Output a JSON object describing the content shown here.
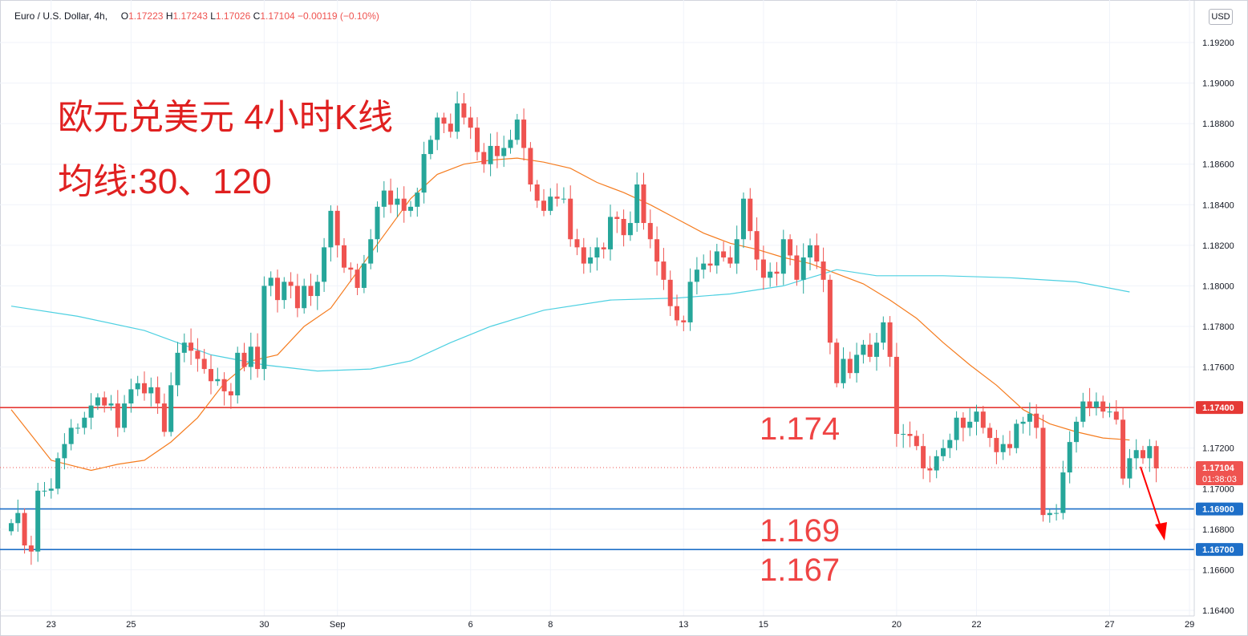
{
  "legend": {
    "symbol": "Euro / U.S. Dollar, 4h,",
    "open_label": "O",
    "open": "1.17223",
    "high_label": "H",
    "high": "1.17243",
    "low_label": "L",
    "low": "1.17026",
    "close_label": "C",
    "close": "1.17104",
    "change": "−0.00119 (−0.10%)"
  },
  "currency_button": "USD",
  "annotations": {
    "title": "欧元兑美元 4小时K线",
    "ma_label": "均线:30、120",
    "level_174": "1.174",
    "level_169": "1.169",
    "level_167": "1.167"
  },
  "colors": {
    "up": "#26a69a",
    "down": "#ef5350",
    "ma30": "#f57c1f",
    "ma120": "#4dd0e1",
    "resistance": "#e53935",
    "support": "#1e6fc8",
    "arrow": "#ff0000"
  },
  "chart_data": {
    "type": "candlestick",
    "title": "欧元兑美元 4小时K线",
    "ylim": [
      1.164,
      1.193
    ],
    "y_ticks": [
      "1.19200",
      "1.19000",
      "1.18800",
      "1.18600",
      "1.18400",
      "1.18200",
      "1.18000",
      "1.17800",
      "1.17600",
      "1.17400",
      "1.17200",
      "1.17000",
      "1.16800",
      "1.16600",
      "1.16400"
    ],
    "x_ticks": [
      {
        "label": "23",
        "bar": 6
      },
      {
        "label": "25",
        "bar": 18
      },
      {
        "label": "30",
        "bar": 38
      },
      {
        "label": "Sep",
        "bar": 49
      },
      {
        "label": "6",
        "bar": 69
      },
      {
        "label": "8",
        "bar": 81
      },
      {
        "label": "13",
        "bar": 101
      },
      {
        "label": "15",
        "bar": 113
      },
      {
        "label": "20",
        "bar": 133
      },
      {
        "label": "22",
        "bar": 145
      },
      {
        "label": "27",
        "bar": 165
      },
      {
        "label": "29",
        "bar": 177
      }
    ],
    "horizontal_lines": [
      {
        "name": "resistance",
        "value": 1.174,
        "label": "1.17400"
      },
      {
        "name": "support",
        "value": 1.169,
        "label": "1.16900"
      },
      {
        "name": "support",
        "value": 1.167,
        "label": "1.16700"
      }
    ],
    "last_price": {
      "value": 1.17104,
      "label": "1.17104",
      "countdown": "01:38:03"
    },
    "closes": [
      1.1683,
      1.1688,
      1.1672,
      1.1669,
      1.1699,
      1.1699,
      1.17,
      1.1715,
      1.1722,
      1.173,
      1.173,
      1.1735,
      1.1741,
      1.1745,
      1.1741,
      1.1742,
      1.173,
      1.1742,
      1.1749,
      1.1752,
      1.1747,
      1.175,
      1.1742,
      1.1728,
      1.1751,
      1.1767,
      1.1772,
      1.1768,
      1.1764,
      1.1759,
      1.1753,
      1.1754,
      1.1748,
      1.1746,
      1.1767,
      1.176,
      1.177,
      1.1759,
      1.18,
      1.1804,
      1.1793,
      1.1802,
      1.18,
      1.1789,
      1.18,
      1.1795,
      1.1802,
      1.1819,
      1.1837,
      1.182,
      1.1809,
      1.1808,
      1.1799,
      1.1811,
      1.1823,
      1.1839,
      1.1847,
      1.184,
      1.1843,
      1.1837,
      1.1839,
      1.1846,
      1.1865,
      1.1872,
      1.1883,
      1.188,
      1.1876,
      1.189,
      1.1883,
      1.1878,
      1.1866,
      1.186,
      1.1869,
      1.1864,
      1.1868,
      1.1872,
      1.1882,
      1.1868,
      1.185,
      1.1842,
      1.1837,
      1.1844,
      1.1843,
      1.1843,
      1.1823,
      1.1819,
      1.1811,
      1.1814,
      1.1819,
      1.1818,
      1.1834,
      1.1833,
      1.1825,
      1.1831,
      1.185,
      1.1831,
      1.1823,
      1.1812,
      1.1803,
      1.179,
      1.1783,
      1.1782,
      1.1802,
      1.1808,
      1.1811,
      1.181,
      1.1817,
      1.1814,
      1.1811,
      1.1823,
      1.1843,
      1.1827,
      1.1813,
      1.1804,
      1.1807,
      1.1806,
      1.1823,
      1.1815,
      1.1803,
      1.1814,
      1.182,
      1.1812,
      1.1803,
      1.1772,
      1.1752,
      1.1764,
      1.1757,
      1.1766,
      1.1771,
      1.1765,
      1.1772,
      1.1782,
      1.1765,
      1.1727,
      1.1727,
      1.1726,
      1.1721,
      1.171,
      1.1709,
      1.1716,
      1.172,
      1.1724,
      1.1735,
      1.173,
      1.1733,
      1.1738,
      1.173,
      1.1725,
      1.1718,
      1.1722,
      1.172,
      1.1732,
      1.1733,
      1.1737,
      1.173,
      1.1687,
      1.1688,
      1.1688,
      1.1708,
      1.1723,
      1.1733,
      1.1743,
      1.174,
      1.1743,
      1.1738,
      1.1738,
      1.1734,
      1.1705,
      1.1715,
      1.1719,
      1.1715,
      1.1721,
      1.171
    ],
    "series": [
      {
        "name": "30",
        "values": [
          [
            0,
            1.1739
          ],
          [
            6,
            1.1714
          ],
          [
            12,
            1.1709
          ],
          [
            16,
            1.1712
          ],
          [
            20,
            1.1714
          ],
          [
            24,
            1.1723
          ],
          [
            28,
            1.1735
          ],
          [
            32,
            1.1752
          ],
          [
            36,
            1.1763
          ],
          [
            40,
            1.1766
          ],
          [
            44,
            1.178
          ],
          [
            48,
            1.1789
          ],
          [
            52,
            1.1807
          ],
          [
            56,
            1.1825
          ],
          [
            60,
            1.1843
          ],
          [
            64,
            1.1855
          ],
          [
            68,
            1.186
          ],
          [
            72,
            1.1862
          ],
          [
            76,
            1.1863
          ],
          [
            80,
            1.1861
          ],
          [
            84,
            1.1858
          ],
          [
            88,
            1.1851
          ],
          [
            92,
            1.1846
          ],
          [
            96,
            1.184
          ],
          [
            100,
            1.1833
          ],
          [
            104,
            1.1826
          ],
          [
            108,
            1.1821
          ],
          [
            112,
            1.1818
          ],
          [
            116,
            1.1814
          ],
          [
            120,
            1.1811
          ],
          [
            124,
            1.1806
          ],
          [
            128,
            1.1801
          ],
          [
            132,
            1.1793
          ],
          [
            136,
            1.1784
          ],
          [
            140,
            1.1772
          ],
          [
            144,
            1.1761
          ],
          [
            148,
            1.1751
          ],
          [
            152,
            1.1739
          ],
          [
            156,
            1.1732
          ],
          [
            160,
            1.1728
          ],
          [
            164,
            1.1725
          ],
          [
            168,
            1.1724
          ]
        ]
      },
      {
        "name": "120",
        "values": [
          [
            0,
            1.179
          ],
          [
            10,
            1.1785
          ],
          [
            20,
            1.1778
          ],
          [
            30,
            1.1766
          ],
          [
            38,
            1.1761
          ],
          [
            46,
            1.1758
          ],
          [
            54,
            1.1759
          ],
          [
            60,
            1.1763
          ],
          [
            66,
            1.1772
          ],
          [
            72,
            1.178
          ],
          [
            80,
            1.1788
          ],
          [
            90,
            1.1793
          ],
          [
            100,
            1.1794
          ],
          [
            108,
            1.1796
          ],
          [
            116,
            1.18
          ],
          [
            124,
            1.1808
          ],
          [
            130,
            1.1805
          ],
          [
            140,
            1.1805
          ],
          [
            150,
            1.1804
          ],
          [
            160,
            1.1802
          ],
          [
            168,
            1.1797
          ]
        ]
      }
    ]
  }
}
